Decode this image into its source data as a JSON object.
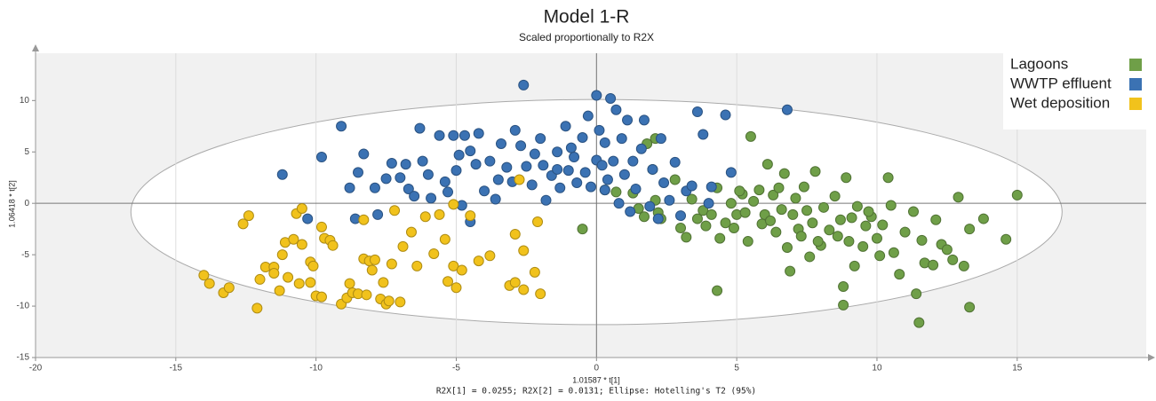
{
  "chart_data": {
    "type": "scatter",
    "title": "Model 1-R",
    "subtitle": "Scaled proportionally to R2X",
    "x_label": "1.01587 * t[1]",
    "y_label": "1.06418 * t[2]",
    "footer": "R2X[1] = 0.0255; R2X[2] = 0.0131; Ellipse: Hotelling's T2 (95%)",
    "xlim": [
      -20,
      19.6
    ],
    "ylim": [
      -15,
      14.6
    ],
    "xticks": [
      -20,
      -15,
      -10,
      -5,
      0,
      5,
      10,
      15
    ],
    "yticks": [
      -15,
      -10,
      -5,
      0,
      5,
      10
    ],
    "grid": true,
    "legend": "top-right",
    "ellipse": {
      "center": [
        0,
        -0.85
      ],
      "rx": 16.6,
      "ry": 10.95
    },
    "series": [
      {
        "name": "Lagoons",
        "color": "#6f9f48",
        "x": [
          -0.5,
          0.3,
          1.3,
          1.5,
          1.7,
          1.8,
          2,
          2.1,
          2.2,
          2.3,
          2.1,
          2.8,
          3,
          3.2,
          3.4,
          3.6,
          3.8,
          3.9,
          4.1,
          4.3,
          4.4,
          4.6,
          4.8,
          4.9,
          5,
          5.2,
          5.3,
          5.4,
          5.5,
          5.6,
          5.8,
          5.9,
          6,
          6.1,
          6.3,
          6.4,
          6.5,
          6.6,
          6.7,
          6.8,
          6.9,
          7,
          7.1,
          7.2,
          7.3,
          7.4,
          7.5,
          7.6,
          7.7,
          7.8,
          8,
          8.1,
          8.3,
          8.5,
          8.7,
          8.8,
          8.8,
          8.9,
          9,
          9.1,
          9.2,
          9.3,
          9.5,
          9.6,
          9.8,
          10,
          10.1,
          10.2,
          10.4,
          10.5,
          10.6,
          10.8,
          11,
          11.3,
          11.4,
          11.5,
          11.6,
          11.7,
          12,
          12.1,
          12.3,
          12.5,
          12.7,
          12.9,
          13.1,
          13.3,
          13.3,
          13.8,
          14.6,
          15,
          7.9,
          8.6,
          6.2,
          9.7,
          5.1,
          4.3,
          0.7
        ],
        "values": [
          -2.5,
          1.3,
          1,
          -0.5,
          -1.3,
          5.8,
          3.3,
          0.3,
          -0.9,
          -1.5,
          6.3,
          2.3,
          -2.4,
          -3.3,
          0.4,
          -1.5,
          -0.7,
          -2.2,
          -1.1,
          1.5,
          -3.4,
          -1.9,
          0,
          -2.4,
          -1.1,
          0.9,
          -0.9,
          -3.7,
          6.5,
          0.2,
          1.3,
          -2,
          -1.1,
          3.8,
          0.8,
          -2.8,
          1.5,
          -0.6,
          2.9,
          -4.3,
          -6.6,
          -1.1,
          0.5,
          -2.5,
          -3.2,
          1.6,
          -0.7,
          -5.2,
          -1.9,
          3.1,
          -4.1,
          -0.4,
          -2.6,
          0.7,
          -1.6,
          -8.1,
          -9.9,
          2.5,
          -3.7,
          -1.4,
          -6.1,
          -0.3,
          -4.2,
          -2.2,
          -1.3,
          -3.4,
          -5.1,
          -2.1,
          2.5,
          -0.2,
          -4.8,
          -6.9,
          -2.8,
          -0.8,
          -8.8,
          -11.6,
          -3.6,
          -5.8,
          -6,
          -1.6,
          -4,
          -4.5,
          -5.5,
          0.6,
          -6.1,
          -10.1,
          -2.5,
          -1.5,
          -3.5,
          0.8,
          -3.7,
          -3.2,
          -1.7,
          -0.8,
          1.2,
          -8.5,
          1.1
        ]
      },
      {
        "name": "WWTP effluent",
        "color": "#3b72b3",
        "x": [
          -11.2,
          -10.3,
          -9.1,
          -8.8,
          -8.6,
          -8.3,
          -7.9,
          -7.8,
          -7.5,
          -7.3,
          -7,
          -6.8,
          -6.7,
          -6.5,
          -6.3,
          -6,
          -5.9,
          -5.6,
          -5.4,
          -5.3,
          -5.1,
          -5,
          -4.9,
          -4.7,
          -4.5,
          -4.3,
          -4,
          -3.8,
          -3.6,
          -3.4,
          -3.2,
          -3,
          -2.9,
          -2.7,
          -2.6,
          -2.5,
          -2.3,
          -2,
          -1.9,
          -1.8,
          -1.6,
          -1.4,
          -1.3,
          -1.1,
          -1,
          -0.8,
          -0.7,
          -0.5,
          -0.4,
          -0.3,
          -0.2,
          0,
          0.1,
          0,
          0.2,
          0.3,
          0.5,
          0.4,
          0.6,
          0.7,
          0.8,
          0.9,
          1,
          1.1,
          1.3,
          1.4,
          1.6,
          1.7,
          2,
          2.3,
          2.4,
          2.6,
          2.8,
          3,
          3.2,
          3.4,
          3.6,
          4.1,
          4,
          3.8,
          4.6,
          4.8,
          6.8,
          -9.8,
          -8.5,
          -6.2,
          -4.2,
          -3.5,
          -2.2,
          -1.4,
          -0.9,
          0.3,
          1.2,
          1.9,
          2.2,
          -4.5,
          -4.8
        ],
        "values": [
          2.8,
          -1.5,
          7.5,
          1.5,
          -1.5,
          4.8,
          1.5,
          -1.1,
          2.4,
          3.9,
          2.5,
          3.8,
          1.4,
          0.7,
          7.3,
          2.8,
          0.5,
          6.6,
          2.1,
          1.1,
          6.6,
          3.2,
          4.7,
          6.6,
          5.1,
          3.8,
          1.2,
          4.1,
          0.4,
          5.8,
          3.5,
          2.1,
          7.1,
          5.6,
          11.5,
          3.6,
          1.8,
          6.3,
          3.7,
          0.3,
          2.7,
          5,
          1.5,
          7.5,
          3.2,
          4.5,
          2,
          6.4,
          3,
          8.5,
          1.6,
          4.2,
          7.1,
          10.5,
          3.7,
          5.9,
          10.2,
          2.3,
          4.1,
          9.1,
          0,
          6.3,
          2.8,
          8.1,
          4.1,
          1.4,
          5.3,
          8.1,
          3.3,
          6.3,
          2,
          0.3,
          4,
          -1.2,
          1.2,
          1.7,
          8.9,
          1.6,
          0,
          6.7,
          8.6,
          3,
          9.1,
          4.5,
          3,
          4.1,
          6.8,
          2.3,
          4.8,
          3.3,
          5.4,
          1.3,
          -0.8,
          -0.3,
          -1.5,
          -1.8,
          -0.2
        ]
      },
      {
        "name": "Wet deposition",
        "color": "#f1c21c",
        "x": [
          -14,
          -13.8,
          -13.3,
          -13.1,
          -12.6,
          -12.4,
          -12.1,
          -12,
          -11.8,
          -11.5,
          -11.5,
          -11.3,
          -11.2,
          -11.1,
          -11,
          -10.8,
          -10.7,
          -10.6,
          -10.5,
          -10.5,
          -10.2,
          -10.2,
          -10,
          -10.1,
          -9.8,
          -9.8,
          -9.7,
          -9.5,
          -9.4,
          -9.1,
          -8.9,
          -8.8,
          -8.7,
          -8.5,
          -8.3,
          -8.3,
          -8.2,
          -8.1,
          -8,
          -7.9,
          -7.7,
          -7.6,
          -7.5,
          -7.4,
          -7.3,
          -7.2,
          -6.9,
          -6.6,
          -6.4,
          -6.1,
          -5.8,
          -5.6,
          -5.4,
          -5,
          -5.1,
          -5.3,
          -5.1,
          -4.8,
          -4.5,
          -4.2,
          -3.8,
          -3.1,
          -2.9,
          -2.6,
          -2.1,
          -2.9,
          -2.6,
          -2.2,
          -2,
          -2.75,
          -7
        ],
        "values": [
          -7,
          -7.8,
          -8.7,
          -8.2,
          -2,
          -1.2,
          -10.2,
          -7.4,
          -6.2,
          -6.2,
          -6.8,
          -8.5,
          -5,
          -3.8,
          -7.2,
          -3.5,
          -1,
          -7.8,
          -4,
          -0.5,
          -7.7,
          -5.7,
          -9,
          -6.1,
          -9.1,
          -2.3,
          -3.4,
          -3.6,
          -4.1,
          -9.8,
          -9.2,
          -7.8,
          -8.7,
          -8.8,
          -1.6,
          -5.4,
          -8.9,
          -5.6,
          -6.5,
          -5.5,
          -9.3,
          -7.7,
          -9.8,
          -9.5,
          -5.9,
          -0.7,
          -4.2,
          -2.8,
          -6.1,
          -1.3,
          -4.9,
          -1.1,
          -3.5,
          -8.2,
          -0.1,
          -7.6,
          -6.1,
          -6.5,
          -1.2,
          -5.6,
          -5.1,
          -8,
          -7.7,
          -8.4,
          -1.8,
          -3,
          -4.6,
          -6.7,
          -8.8,
          2.3,
          -9.6
        ]
      }
    ]
  }
}
